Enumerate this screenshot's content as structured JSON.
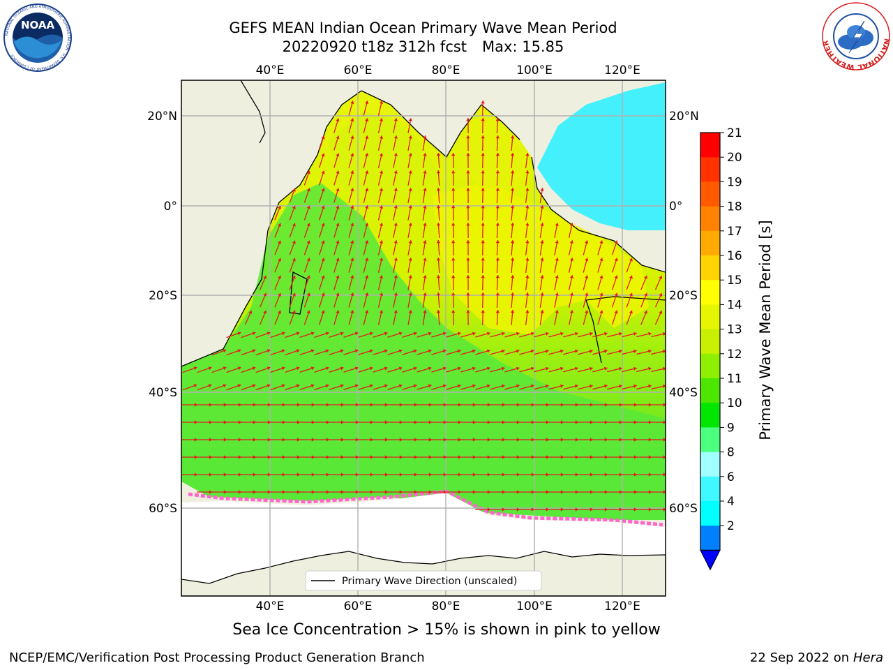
{
  "title": {
    "line1": "GEFS MEAN Indian Ocean Primary Wave Mean Period",
    "run": "20220920 t18z 312h fcst",
    "max": "Max: 15.85"
  },
  "logos": {
    "left": "NOAA",
    "left_ring": "NATIONAL OCEANIC AND ATMOSPHERIC ADMINISTRATION · U.S. DEPARTMENT OF COMMERCE",
    "right_ring": "NATIONAL WEATHER SERVICE"
  },
  "map": {
    "lon_labels": [
      "40°E",
      "60°E",
      "80°E",
      "100°E",
      "120°E"
    ],
    "lat_labels": [
      "20°N",
      "0°",
      "20°S",
      "40°S",
      "60°S"
    ],
    "legend": "Primary Wave Direction (unscaled)",
    "arrow_color": "#e41a1c",
    "land_color": "#efefdf"
  },
  "colorbar": {
    "label": "Primary Wave Mean Period [s]",
    "ticks": [
      "21",
      "20",
      "19",
      "18",
      "17",
      "16",
      "15",
      "14",
      "13",
      "12",
      "11",
      "10",
      "9",
      "8",
      "6",
      "4",
      "2"
    ],
    "colors": [
      "#ff0000",
      "#ff3200",
      "#ff5a00",
      "#ff8200",
      "#ffaa00",
      "#ffd400",
      "#ffff00",
      "#e6f500",
      "#c8f000",
      "#8ef000",
      "#4ce600",
      "#00e600",
      "#4cff7e",
      "#a0ffff",
      "#40f8ff",
      "#00ffff",
      "#0080ff"
    ],
    "extend_color": "#0000ff"
  },
  "footer": {
    "caption": "Sea Ice Concentration > 15% is shown in pink to yellow",
    "credit": "NCEP/EMC/Verification Post Processing Product Generation Branch",
    "date": "22 Sep 2022 on",
    "machine": "Hera"
  }
}
